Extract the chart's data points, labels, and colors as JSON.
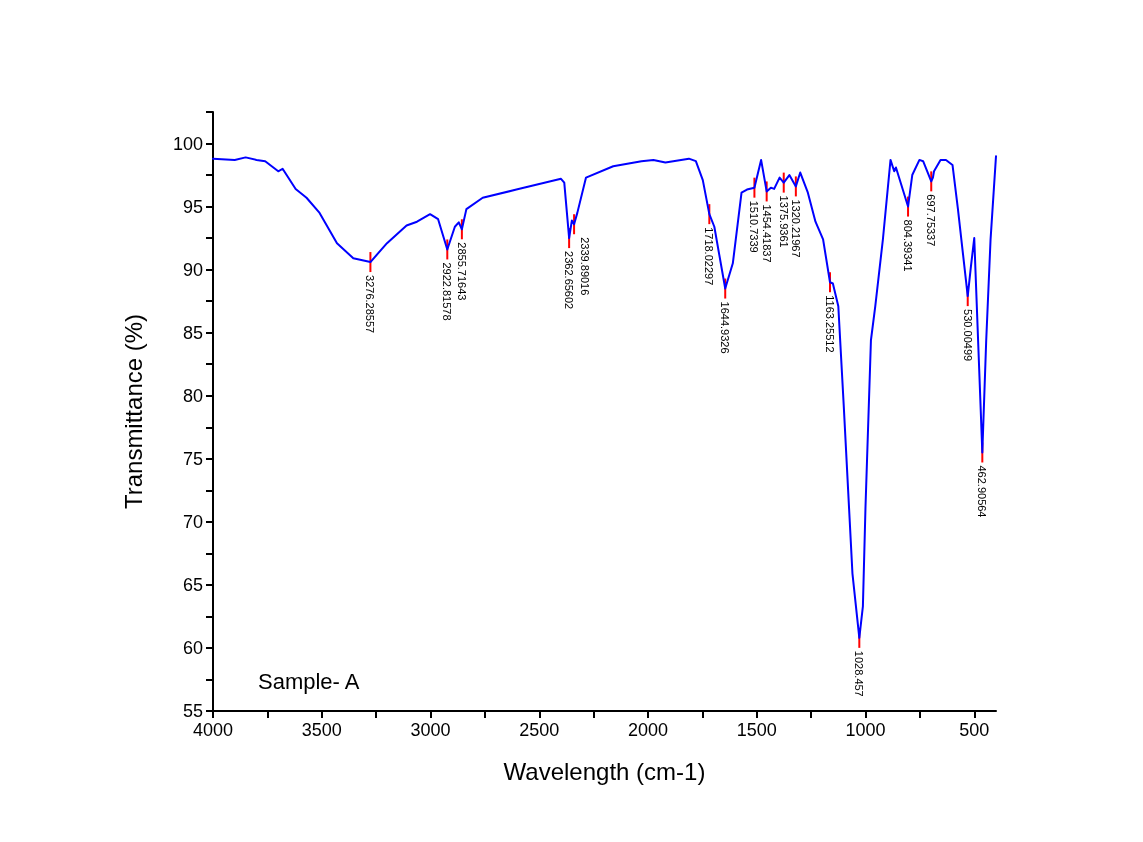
{
  "chart_data": {
    "type": "line",
    "xlabel": "Wavelength (cm-1)",
    "ylabel": "Transmittance (%)",
    "xlim": [
      4000,
      400
    ],
    "ylim": [
      55,
      102.5
    ],
    "xticks": [
      4000,
      {
        "value": 3750,
        "label": null
      },
      3500,
      {
        "value": 3250,
        "label": null
      },
      3000,
      {
        "value": 2750,
        "label": null
      },
      2500,
      {
        "value": 2250,
        "label": null
      },
      2000,
      {
        "value": 1750,
        "label": null
      },
      1500,
      {
        "value": 1250,
        "label": null
      },
      1000,
      {
        "value": 750,
        "label": null
      },
      500
    ],
    "yticks": [
      55,
      {
        "value": 57.5,
        "label": null
      },
      60,
      {
        "value": 62.5,
        "label": null
      },
      65,
      {
        "value": 67.5,
        "label": null
      },
      70,
      {
        "value": 72.5,
        "label": null
      },
      75,
      {
        "value": 77.5,
        "label": null
      },
      80,
      {
        "value": 82.5,
        "label": null
      },
      85,
      {
        "value": 87.5,
        "label": null
      },
      90,
      {
        "value": 92.5,
        "label": null
      },
      95,
      {
        "value": 97.5,
        "label": null
      },
      100,
      {
        "value": 102.5,
        "label": null
      }
    ],
    "grid": false,
    "marker": "none",
    "line_style": "solid",
    "series": [
      {
        "color": "#0000ff",
        "x": [
          4000,
          3900,
          3850,
          3800,
          3760,
          3700,
          3680,
          3620,
          3570,
          3510,
          3430,
          3355,
          3276.28557,
          3200,
          3110,
          3062,
          3002,
          2965,
          2922.81578,
          2888,
          2870,
          2855.71643,
          2835,
          2760,
          2605,
          2400,
          2385,
          2362.65602,
          2350,
          2339.89016,
          2325,
          2285,
          2160,
          2030,
          1975,
          1920,
          1812,
          1780,
          1748,
          1718.02297,
          1695,
          1644.9326,
          1610,
          1570,
          1545,
          1510.7339,
          1480,
          1454.41837,
          1435,
          1420,
          1395,
          1375.9361,
          1350,
          1320.21967,
          1300,
          1265,
          1230,
          1195,
          1163.25512,
          1150,
          1125,
          1100,
          1060,
          1028.457,
          1012,
          1000,
          975,
          955,
          920,
          885,
          868,
          860,
          804.39341,
          785,
          752,
          735,
          697.75337,
          690,
          685,
          655,
          630,
          600,
          575,
          530.00499,
          515,
          500,
          462.90564,
          445,
          425,
          400
        ],
        "values": [
          98.8,
          98.7,
          98.9,
          98.7,
          98.6,
          97.8,
          98.0,
          96.4,
          95.7,
          94.5,
          92.1,
          90.9,
          90.6,
          92.1,
          93.5,
          93.8,
          94.4,
          94.0,
          91.6,
          93.4,
          93.75,
          93.2,
          94.8,
          95.7,
          96.35,
          97.2,
          96.9,
          92.5,
          93.9,
          93.6,
          94.5,
          97.3,
          98.2,
          98.6,
          98.7,
          98.5,
          98.8,
          98.6,
          97.1,
          94.4,
          93.4,
          88.5,
          90.5,
          96.1,
          96.35,
          96.5,
          98.7,
          96.2,
          96.5,
          96.4,
          97.3,
          96.9,
          97.5,
          96.6,
          97.7,
          96.1,
          93.8,
          92.4,
          89.0,
          88.9,
          87.1,
          79.2,
          65.9,
          60.8,
          63.3,
          71.2,
          84.4,
          87.1,
          92.4,
          98.7,
          97.8,
          98.1,
          95.0,
          97.5,
          98.7,
          98.6,
          97.0,
          97.3,
          97.8,
          98.7,
          98.7,
          98.3,
          94.8,
          87.9,
          90.3,
          92.5,
          75.5,
          84.4,
          92.4,
          99.0
        ]
      }
    ],
    "annotations": [
      "Sample- A",
      {
        "text": "3276.28557",
        "x": 3276.28557,
        "y": 90.6
      },
      {
        "text": "2922.81578",
        "x": 2922.81578,
        "y": 91.6
      },
      {
        "text": "2855.71643",
        "x": 2855.71643,
        "y": 93.2
      },
      {
        "text": "2362.65602",
        "x": 2362.65602,
        "y": 92.5
      },
      {
        "text": "2339.89016",
        "x": 2339.89016,
        "y": 93.6
      },
      {
        "text": "1718.02297",
        "x": 1718.02297,
        "y": 94.4
      },
      {
        "text": "1644.9326",
        "x": 1644.9326,
        "y": 88.5
      },
      {
        "text": "1510.7339",
        "x": 1510.7339,
        "y": 96.5
      },
      {
        "text": "1454.41837",
        "x": 1454.41837,
        "y": 96.2
      },
      {
        "text": "1375.9361",
        "x": 1375.9361,
        "y": 96.9
      },
      {
        "text": "1320.21967",
        "x": 1320.21967,
        "y": 96.6
      },
      {
        "text": "1163.25512",
        "x": 1163.25512,
        "y": 89.0
      },
      {
        "text": "1028.457",
        "x": 1028.457,
        "y": 60.8
      },
      {
        "text": "804.39341",
        "x": 804.39341,
        "y": 95.0
      },
      {
        "text": "697.75337",
        "x": 697.75337,
        "y": 97.0
      },
      {
        "text": "530.00499",
        "x": 530.00499,
        "y": 87.9
      },
      {
        "text": "462.90564",
        "x": 462.90564,
        "y": 75.5
      }
    ]
  }
}
